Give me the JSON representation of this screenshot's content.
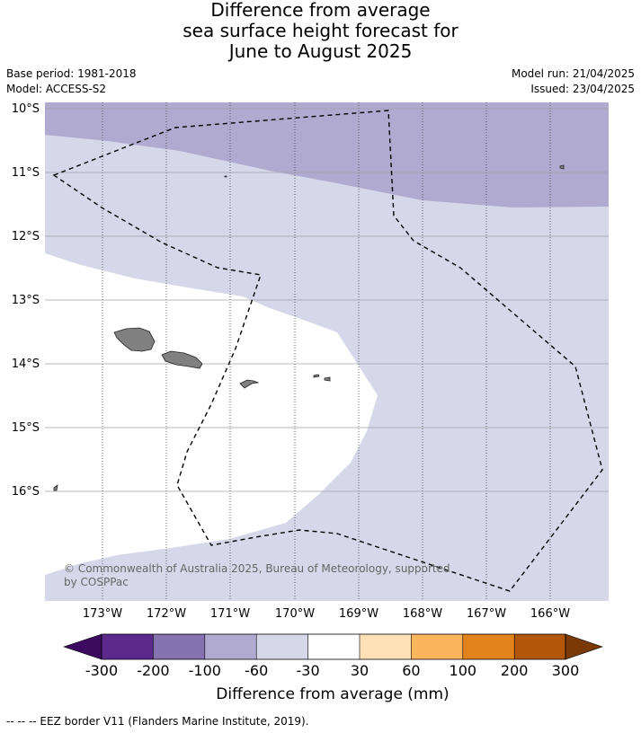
{
  "title": {
    "line1": "Difference from average",
    "line2": "sea surface height forecast for",
    "line3": "June to August 2025"
  },
  "meta": {
    "base_period": "Base period: 1981-2018",
    "model": "Model: ACCESS-S2",
    "model_run": "Model run: 21/04/2025",
    "issued": "Issued: 23/04/2025"
  },
  "map": {
    "lat_ticks": [
      "10°S",
      "11°S",
      "12°S",
      "13°S",
      "14°S",
      "15°S",
      "16°S"
    ],
    "lon_ticks": [
      "173°W",
      "172°W",
      "171°W",
      "170°W",
      "169°W",
      "168°W",
      "167°W",
      "166°W"
    ],
    "colors": {
      "band_-100_-60": "#b0aad0",
      "band_-60_-30": "#d6d7e9",
      "band_-30_30": "#ffffff",
      "land": "#808080",
      "eez": "#000000"
    }
  },
  "colorbar": {
    "title": "Difference from average (mm)",
    "tick_labels": [
      "-300",
      "-200",
      "-100",
      "-60",
      "-30",
      "30",
      "60",
      "100",
      "200",
      "300"
    ],
    "colors": [
      "#3c0a5e",
      "#5b2a8c",
      "#8473b0",
      "#b0aad0",
      "#d6d7e9",
      "#ffffff",
      "#fde0b6",
      "#fbb55d",
      "#e2821a",
      "#b45608",
      "#7a3a06"
    ]
  },
  "copyright": "© Commonwealth of Australia 2025, Bureau of Meteorology, supported by COSPPac",
  "footnote": "--  --  -- EEZ border V11 (Flanders Marine Institute, 2019)."
}
